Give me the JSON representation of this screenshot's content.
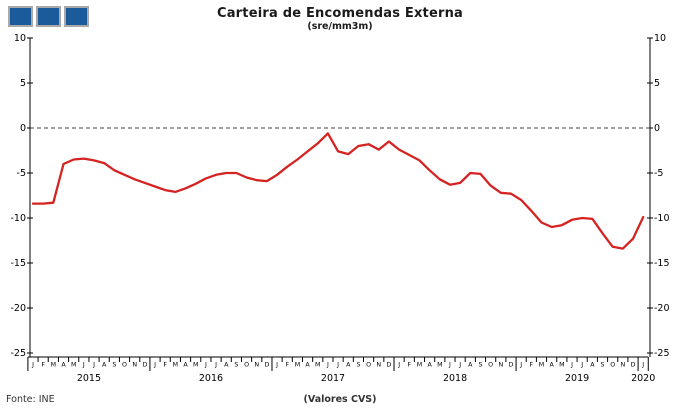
{
  "header": {
    "title": "Carteira de Encomendas Externa",
    "subtitle": "(sre/mm3m)",
    "logo": {
      "shape": "three-blue-squares",
      "fill": "#1b5a9b",
      "border": "#a9a9a9"
    }
  },
  "footer": {
    "source": "Fonte: INE",
    "note": "(Valores CVS)"
  },
  "chart_data": {
    "type": "line",
    "title": "Carteira de Encomendas Externa",
    "subtitle": "(sre/mm3m)",
    "xlabel": "",
    "ylabel": "",
    "ylim": [
      -25,
      10
    ],
    "yticks": [
      10,
      5,
      0,
      -5,
      -10,
      -15,
      -20,
      -25
    ],
    "grid": "dashed-zero-line-only",
    "legend": "none",
    "line_color": "#d42321",
    "axis_color": "#000000",
    "month_labels": [
      "J",
      "F",
      "M",
      "A",
      "M",
      "J",
      "J",
      "A",
      "S",
      "O",
      "N",
      "D"
    ],
    "years": [
      "2015",
      "2016",
      "2017",
      "2018",
      "2019",
      "2020"
    ],
    "x_range_note": "monthly, Jan 2015 - Jan 2020 (61 points)",
    "series": [
      {
        "name": "Carteira de Encomendas Externa (sre/mm3m)",
        "values": [
          -8.4,
          -8.4,
          -8.3,
          -4.0,
          -3.5,
          -3.4,
          -3.6,
          -3.9,
          -4.7,
          -5.2,
          -5.7,
          -6.1,
          -6.5,
          -6.9,
          -7.1,
          -6.7,
          -6.2,
          -5.6,
          -5.2,
          -5.0,
          -5.0,
          -5.5,
          -5.8,
          -5.9,
          -5.2,
          -4.3,
          -3.5,
          -2.6,
          -1.7,
          -0.6,
          -2.6,
          -2.9,
          -2.0,
          -1.8,
          -2.4,
          -1.5,
          -2.4,
          -3.0,
          -3.6,
          -4.7,
          -5.7,
          -6.3,
          -6.1,
          -5.0,
          -5.1,
          -6.4,
          -7.2,
          -7.3,
          -8.0,
          -9.2,
          -10.5,
          -11.0,
          -10.8,
          -10.2,
          -10.0,
          -10.1,
          -11.7,
          -13.2,
          -13.4,
          -12.3,
          -9.9
        ]
      }
    ]
  }
}
